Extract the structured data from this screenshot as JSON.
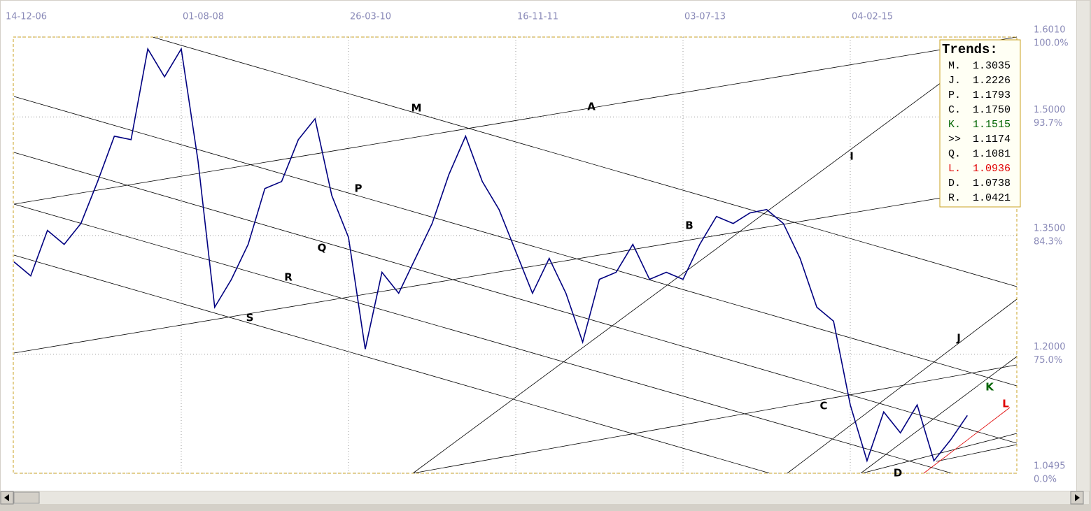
{
  "chart_data": {
    "type": "line",
    "categories": [
      "14-12-06",
      null,
      null,
      null,
      null,
      null,
      null,
      null,
      null,
      null,
      "01-08-08",
      null,
      null,
      null,
      null,
      null,
      null,
      null,
      null,
      null,
      "26-03-10",
      null,
      null,
      null,
      null,
      null,
      null,
      null,
      null,
      null,
      "16-11-11",
      null,
      null,
      null,
      null,
      null,
      null,
      null,
      null,
      null,
      "03-07-13",
      null,
      null,
      null,
      null,
      null,
      null,
      null,
      null,
      null,
      "04-02-15",
      null,
      null,
      null,
      null,
      null,
      null,
      null
    ],
    "values": [
      1.3168,
      1.2991,
      1.3565,
      1.3389,
      1.3653,
      1.4183,
      1.4757,
      1.4713,
      1.586,
      1.5507,
      1.586,
      1.4448,
      1.2594,
      1.2947,
      1.3389,
      1.4095,
      1.4183,
      1.4713,
      1.4977,
      1.4006,
      1.3477,
      1.2065,
      1.3036,
      1.2771,
      1.3212,
      1.3653,
      1.4271,
      1.4757,
      1.4183,
      1.383,
      1.33,
      1.2771,
      1.3212,
      1.2771,
      1.2153,
      1.2947,
      1.3036,
      1.3389,
      1.2947,
      1.3036,
      1.2947,
      1.3389,
      1.3742,
      1.3653,
      1.3786,
      1.383,
      1.3653,
      1.3212,
      1.2594,
      1.2418,
      1.1359,
      1.0653,
      1.127,
      1.1006,
      1.1359,
      1.0653,
      1.0917,
      1.1226
    ],
    "color": "#000080",
    "ylim": [
      1.0495,
      1.601
    ],
    "yticks": [
      {
        "value": 1.601,
        "label": "1.6010"
      },
      {
        "value": 1.5,
        "label": "1.5000"
      },
      {
        "value": 1.35,
        "label": "1.3500"
      },
      {
        "value": 1.2,
        "label": "1.2000"
      },
      1.0495
    ],
    "ytick_percent_labels": [
      "100.0%",
      "93.7%",
      "84.3%",
      "75.0%",
      "0.0%"
    ],
    "grid": true,
    "trendline_labels": [
      {
        "text": "M",
        "color": "#000000"
      },
      {
        "text": "A",
        "color": "#000000"
      },
      {
        "text": "P",
        "color": "#000000"
      },
      {
        "text": "Q",
        "color": "#000000"
      },
      {
        "text": "R",
        "color": "#000000"
      },
      {
        "text": "S",
        "color": "#000000"
      },
      {
        "text": "B",
        "color": "#000000"
      },
      {
        "text": "I",
        "color": "#000000"
      },
      {
        "text": "J",
        "color": "#000000"
      },
      {
        "text": "C",
        "color": "#000000"
      },
      {
        "text": "K",
        "color": "#006400"
      },
      {
        "text": "L",
        "color": "#e00000"
      },
      {
        "text": "D",
        "color": "#000000"
      }
    ]
  },
  "trends": {
    "title": "Trends:",
    "rows": [
      {
        "label": "M.",
        "value": "1.3035",
        "color": "#000000"
      },
      {
        "label": "J.",
        "value": "1.2226",
        "color": "#000000"
      },
      {
        "label": "P.",
        "value": "1.1793",
        "color": "#000000"
      },
      {
        "label": "C.",
        "value": "1.1750",
        "color": "#000000"
      },
      {
        "label": "K.",
        "value": "1.1515",
        "color": "#006400"
      },
      {
        "label": ">>",
        "value": "1.1174",
        "color": "#000000"
      },
      {
        "label": "Q.",
        "value": "1.1081",
        "color": "#000000"
      },
      {
        "label": "L.",
        "value": "1.0936",
        "color": "#e00000"
      },
      {
        "label": "D.",
        "value": "1.0738",
        "color": "#000000"
      },
      {
        "label": "R.",
        "value": "1.0421",
        "color": "#000000"
      }
    ]
  }
}
